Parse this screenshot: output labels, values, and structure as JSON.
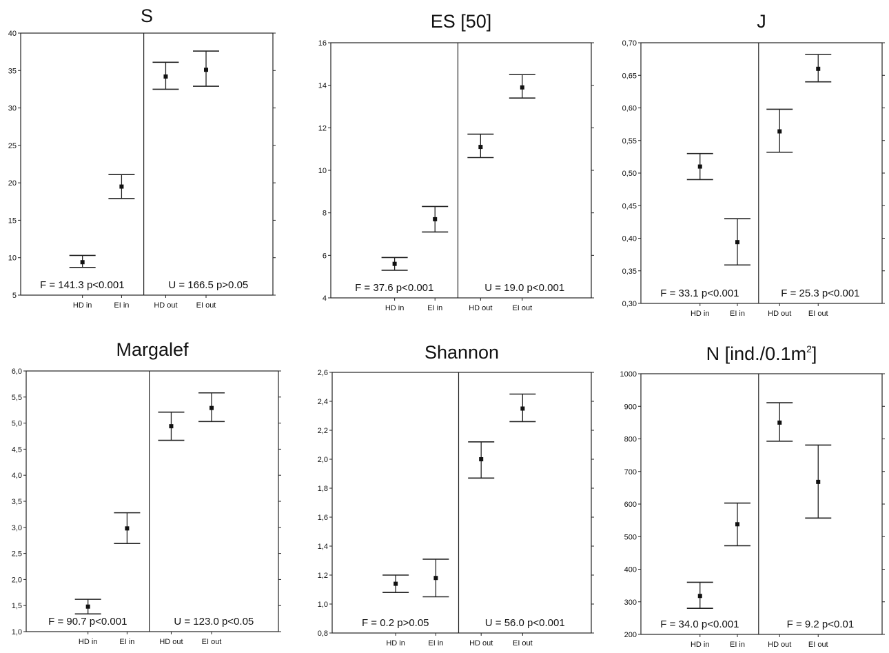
{
  "chart_data": [
    {
      "type": "scatter",
      "title": "S",
      "categories": [
        "HD in",
        "EI in",
        "HD out",
        "EI out"
      ],
      "series": [
        {
          "mean": [
            9.4,
            19.5,
            34.2,
            35.1
          ],
          "lower": [
            8.7,
            17.9,
            32.5,
            32.9
          ],
          "upper": [
            10.3,
            21.1,
            36.1,
            37.6
          ]
        }
      ],
      "ylim": [
        5,
        40
      ],
      "ytick_labels": [
        "5",
        "10",
        "15",
        "20",
        "25",
        "30",
        "35",
        "40"
      ],
      "annotations": [
        "F = 141.3 p<0.001",
        "U = 166.5 p>0.05"
      ]
    },
    {
      "type": "scatter",
      "title": "ES [50]",
      "categories": [
        "HD in",
        "EI in",
        "HD out",
        "EI out"
      ],
      "series": [
        {
          "mean": [
            5.6,
            7.7,
            11.1,
            13.9
          ],
          "lower": [
            5.3,
            7.1,
            10.6,
            13.4
          ],
          "upper": [
            5.9,
            8.3,
            11.7,
            14.5
          ]
        }
      ],
      "ylim": [
        4,
        16
      ],
      "ytick_labels": [
        "4",
        "6",
        "8",
        "10",
        "12",
        "14",
        "16"
      ],
      "annotations": [
        "F = 37.6 p<0.001",
        "U = 19.0 p<0.001"
      ]
    },
    {
      "type": "scatter",
      "title": "J",
      "categories": [
        "HD in",
        "EI in",
        "HD out",
        "EI out"
      ],
      "series": [
        {
          "mean": [
            0.51,
            0.394,
            0.564,
            0.66
          ],
          "lower": [
            0.49,
            0.359,
            0.532,
            0.64
          ],
          "upper": [
            0.53,
            0.43,
            0.598,
            0.682
          ]
        }
      ],
      "ylim": [
        0.3,
        0.7
      ],
      "ytick_labels": [
        "0,30",
        "0,35",
        "0,40",
        "0,45",
        "0,50",
        "0,55",
        "0,60",
        "0,65",
        "0,70"
      ],
      "annotations": [
        "F = 33.1 p<0.001",
        "F = 25.3 p<0.001"
      ]
    },
    {
      "type": "scatter",
      "title": "Margalef",
      "categories": [
        "HD in",
        "EI in",
        "HD out",
        "EI out"
      ],
      "series": [
        {
          "mean": [
            1.48,
            2.98,
            4.94,
            5.29
          ],
          "lower": [
            1.34,
            2.69,
            4.67,
            5.03
          ],
          "upper": [
            1.62,
            3.28,
            5.21,
            5.58
          ]
        }
      ],
      "ylim": [
        1.0,
        6.0
      ],
      "ytick_labels": [
        "1,0",
        "1,5",
        "2,0",
        "2,5",
        "3,0",
        "3,5",
        "4,0",
        "4,5",
        "5,0",
        "5,5",
        "6,0"
      ],
      "annotations": [
        "F = 90.7 p<0.001",
        "U = 123.0 p<0.05"
      ]
    },
    {
      "type": "scatter",
      "title": "Shannon",
      "categories": [
        "HD in",
        "EI in",
        "HD out",
        "EI out"
      ],
      "series": [
        {
          "mean": [
            1.14,
            1.18,
            2.0,
            2.35
          ],
          "lower": [
            1.08,
            1.05,
            1.87,
            2.26
          ],
          "upper": [
            1.2,
            1.31,
            2.12,
            2.45
          ]
        }
      ],
      "ylim": [
        0.8,
        2.6
      ],
      "ytick_labels": [
        "0,8",
        "1,0",
        "1,2",
        "1,4",
        "1,6",
        "1,8",
        "2,0",
        "2,2",
        "2,4",
        "2,6"
      ],
      "annotations": [
        "F = 0.2 p>0.05",
        "U = 56.0 p<0.001"
      ]
    },
    {
      "type": "scatter",
      "title": "N [ind./0.1m",
      "title_sup": "2",
      "title_end": "]",
      "categories": [
        "HD in",
        "EI in",
        "HD out",
        "EI out"
      ],
      "series": [
        {
          "mean": [
            318,
            538,
            850,
            668
          ],
          "lower": [
            280,
            472,
            793,
            557
          ],
          "upper": [
            360,
            603,
            911,
            781
          ]
        }
      ],
      "ylim": [
        200,
        1000
      ],
      "ytick_labels": [
        "200",
        "300",
        "400",
        "500",
        "600",
        "700",
        "800",
        "900",
        "1000"
      ],
      "annotations": [
        "F = 34.0 p<0.001",
        "F = 9.2 p<0.01"
      ]
    }
  ]
}
